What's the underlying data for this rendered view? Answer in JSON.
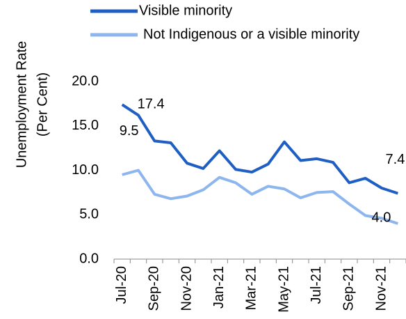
{
  "chart_data": {
    "type": "line",
    "y_axis_label": [
      "Unemployment Rate",
      "(Per Cent)"
    ],
    "categories": [
      "Jul-20",
      null,
      "Sep-20",
      null,
      "Nov-20",
      null,
      "Jan-21",
      null,
      "Mar-21",
      null,
      "May-21",
      null,
      "Jul-21",
      null,
      "Sep-21",
      null,
      "Nov-21",
      null
    ],
    "series": [
      {
        "name": "Visible minority",
        "color": "#1f5fc4",
        "values": [
          17.4,
          16.2,
          13.3,
          13.1,
          10.8,
          10.2,
          12.2,
          10.1,
          9.8,
          10.7,
          13.2,
          11.1,
          11.3,
          10.9,
          8.6,
          9.1,
          8.0,
          7.4
        ],
        "value_labels": [
          "17.4",
          null,
          null,
          null,
          null,
          null,
          null,
          null,
          null,
          null,
          null,
          null,
          null,
          null,
          null,
          null,
          null,
          "7.4"
        ]
      },
      {
        "name": "Not Indigenous or a visible minority",
        "color": "#8db5ee",
        "values": [
          9.5,
          10.0,
          7.3,
          6.8,
          7.1,
          7.8,
          9.2,
          8.6,
          7.3,
          8.2,
          7.9,
          6.9,
          7.5,
          7.6,
          6.2,
          4.9,
          4.6,
          4.0
        ],
        "value_labels": [
          "9.5",
          null,
          null,
          null,
          null,
          null,
          null,
          null,
          null,
          null,
          null,
          null,
          null,
          null,
          null,
          null,
          null,
          "4.0"
        ]
      }
    ],
    "ylim": [
      0,
      20
    ],
    "yticks": [
      {
        "value": 0,
        "label": "0.0"
      },
      {
        "value": 5,
        "label": "5.0"
      },
      {
        "value": 10,
        "label": "10.0"
      },
      {
        "value": 15,
        "label": "15.0"
      },
      {
        "value": 20,
        "label": "20.0"
      }
    ],
    "legend": "top"
  }
}
